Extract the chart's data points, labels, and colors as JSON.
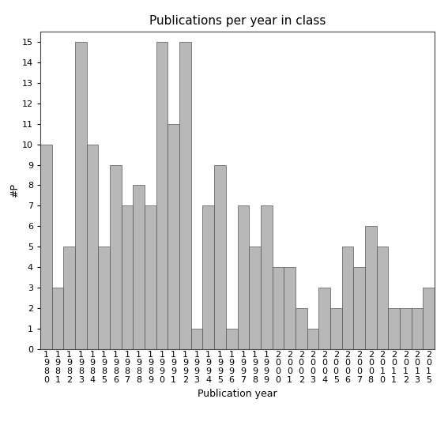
{
  "categories": [
    "1980",
    "1981",
    "1982",
    "1983",
    "1984",
    "1985",
    "1986",
    "1987",
    "1988",
    "1989",
    "1990",
    "1991",
    "1992",
    "1993",
    "1994",
    "1995",
    "1996",
    "1997",
    "1998",
    "1999",
    "2000",
    "2001",
    "2002",
    "2003",
    "2004",
    "2005",
    "2006",
    "2007",
    "2008",
    "2010",
    "2011",
    "2012",
    "2013",
    "2015"
  ],
  "values": [
    10,
    3,
    5,
    15,
    10,
    5,
    9,
    7,
    8,
    7,
    15,
    11,
    15,
    1,
    7,
    9,
    1,
    7,
    5,
    7,
    4,
    4,
    2,
    1,
    3,
    2,
    5,
    4,
    6,
    5,
    2,
    2,
    2,
    3
  ],
  "bar_color": "#b8b8b8",
  "bar_edge_color": "#555555",
  "title": "Publications per year in class",
  "xlabel": "Publication year",
  "ylabel": "#P",
  "ylim": [
    0,
    15.5
  ],
  "yticks": [
    0,
    1,
    2,
    3,
    4,
    5,
    6,
    7,
    8,
    9,
    10,
    11,
    12,
    13,
    14,
    15
  ],
  "background_color": "#ffffff",
  "title_fontsize": 11,
  "label_fontsize": 9,
  "tick_fontsize": 8
}
